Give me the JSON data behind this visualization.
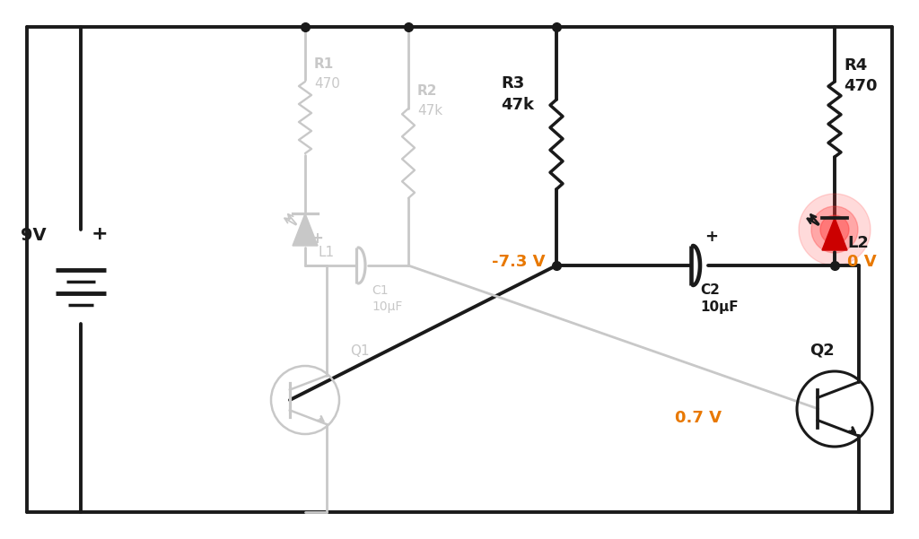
{
  "bg_color": "#ffffff",
  "active_color": "#1a1a1a",
  "faded_color": "#c8c8c8",
  "orange_color": "#e87800",
  "red_led_color": "#cc0000",
  "battery_label": "9V",
  "r1_label_top": "R1",
  "r1_label_bot": "470",
  "r2_label_top": "R2",
  "r2_label_bot": "47k",
  "r3_label_top": "R3",
  "r3_label_bot": "47k",
  "r4_label_top": "R4",
  "r4_label_bot": "470",
  "c1_label_top": "C1",
  "c1_label_bot": "10μF",
  "c2_label_top": "C2",
  "c2_label_bot": "10μF",
  "q1_label": "Q1",
  "q2_label": "Q2",
  "l1_label": "L1",
  "l2_label": "L2",
  "v1_label": "-7.3 V",
  "v2_label": "0 V",
  "v3_label": "0.7 V"
}
